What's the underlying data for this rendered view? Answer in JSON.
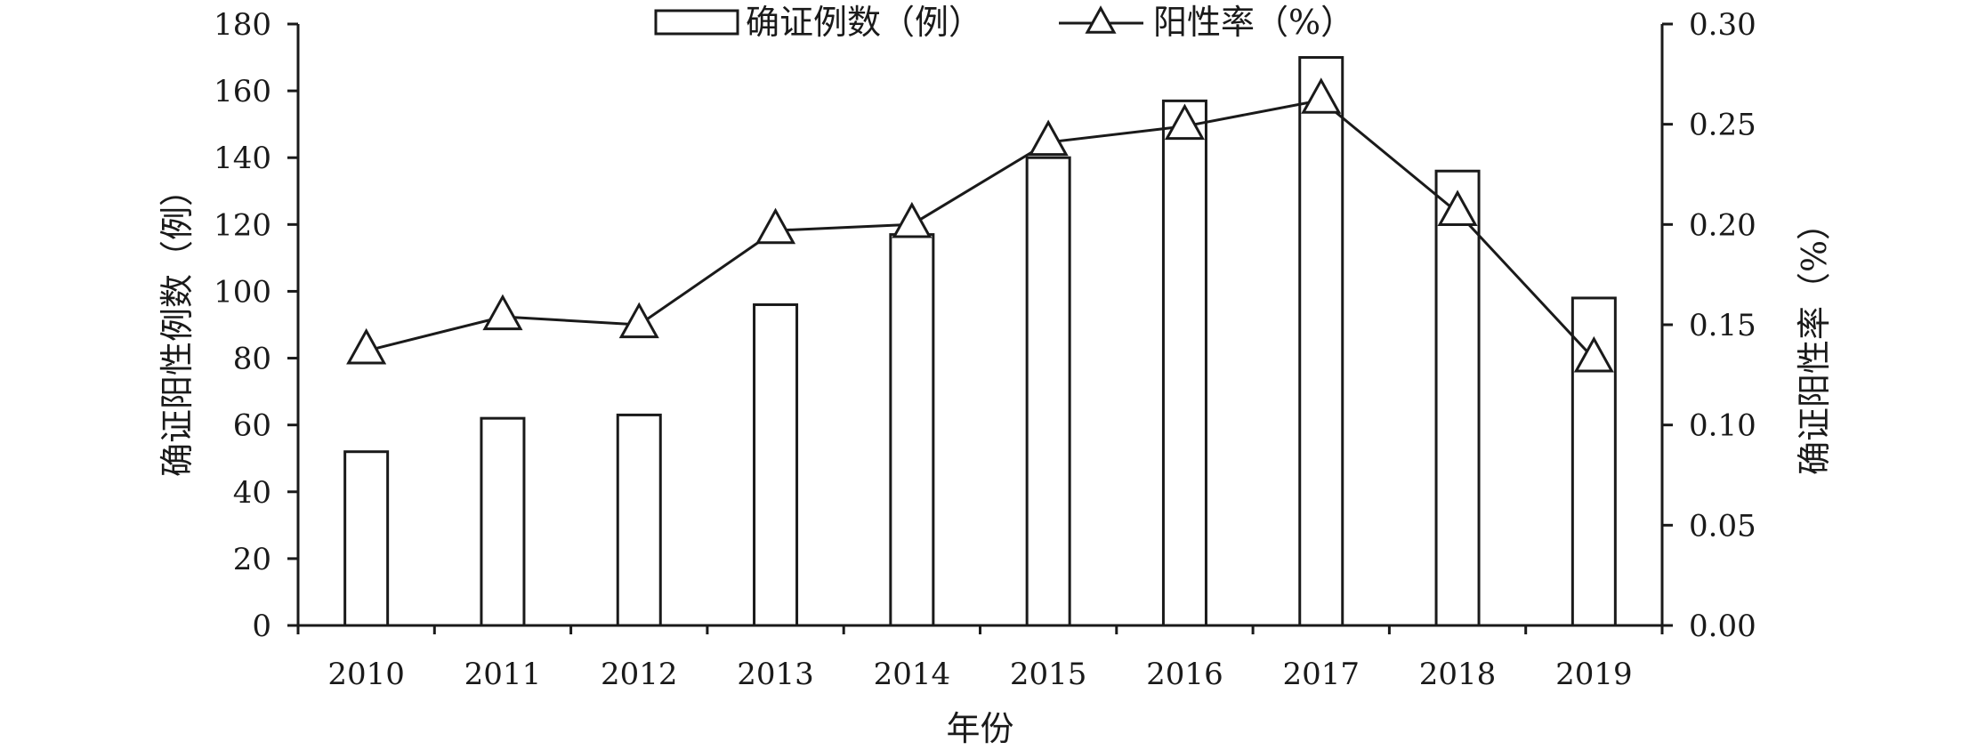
{
  "chart_data": {
    "type": "bar",
    "categories": [
      "2010",
      "2011",
      "2012",
      "2013",
      "2014",
      "2015",
      "2016",
      "2017",
      "2018",
      "2019"
    ],
    "series": [
      {
        "name": "确证例数（例）",
        "type": "bar",
        "axis": "left",
        "values": [
          52,
          62,
          63,
          96,
          117,
          140,
          157,
          170,
          136,
          98
        ]
      },
      {
        "name": "阳性率（%）",
        "type": "line",
        "axis": "right",
        "marker": "triangle",
        "values": [
          0.137,
          0.154,
          0.15,
          0.197,
          0.2,
          0.241,
          0.249,
          0.262,
          0.206,
          0.133
        ]
      }
    ],
    "xlabel": "年份",
    "ylabel": "确证阳性例数（例）",
    "y2label": "确证阳性率（%）",
    "ylim": [
      0,
      180
    ],
    "y2lim": [
      0,
      0.3
    ],
    "yticks": [
      "0",
      "20",
      "40",
      "60",
      "80",
      "100",
      "120",
      "140",
      "160",
      "180"
    ],
    "y2ticks": [
      "0.00",
      "0.05",
      "0.10",
      "0.15",
      "0.20",
      "0.25",
      "0.30"
    ],
    "grid": false,
    "legend_position": "top-center"
  }
}
